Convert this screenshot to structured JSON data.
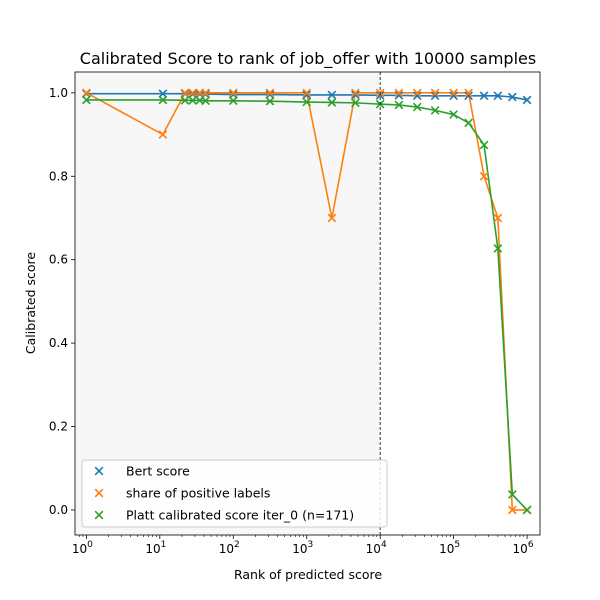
{
  "chart_data": {
    "type": "line",
    "title": "Calibrated Score to rank of job_offer with 10000 samples",
    "xlabel": "Rank of predicted score",
    "ylabel": "Calibrated score",
    "xscale": "log",
    "xlim": [
      0.7,
      1500000
    ],
    "ylim": [
      -0.06,
      1.05
    ],
    "xticks": [
      {
        "value": 1,
        "base": "10",
        "exp": "0"
      },
      {
        "value": 10,
        "base": "10",
        "exp": "1"
      },
      {
        "value": 100,
        "base": "10",
        "exp": "2"
      },
      {
        "value": 1000,
        "base": "10",
        "exp": "3"
      },
      {
        "value": 10000,
        "base": "10",
        "exp": "4"
      },
      {
        "value": 100000,
        "base": "10",
        "exp": "5"
      },
      {
        "value": 1000000,
        "base": "10",
        "exp": "6"
      }
    ],
    "yticks": [
      {
        "value": 0.0,
        "label": "0.0"
      },
      {
        "value": 0.2,
        "label": "0.2"
      },
      {
        "value": 0.4,
        "label": "0.4"
      },
      {
        "value": 0.6,
        "label": "0.6"
      },
      {
        "value": 0.8,
        "label": "0.8"
      },
      {
        "value": 1.0,
        "label": "1.0"
      }
    ],
    "shaded_region": {
      "x_from": 0.7,
      "x_to": 10000,
      "color": "#f7f7f7"
    },
    "vline": {
      "x": 10000,
      "style": "dashed"
    },
    "grid": false,
    "legend_position": "lower-left",
    "series": [
      {
        "name": "Bert score",
        "color": "#1f77b4",
        "x": [
          1,
          11,
          22,
          28,
          35,
          42,
          100,
          316,
          1000,
          2200,
          4600,
          10000,
          18000,
          32000,
          56000,
          100000,
          160000,
          260000,
          400000,
          630000,
          1000000
        ],
        "y": [
          0.998,
          0.998,
          0.998,
          0.997,
          0.997,
          0.997,
          0.996,
          0.996,
          0.995,
          0.995,
          0.995,
          0.994,
          0.994,
          0.993,
          0.993,
          0.993,
          0.993,
          0.993,
          0.993,
          0.99,
          0.983
        ]
      },
      {
        "name": "share of positive labels",
        "color": "#ff7f0e",
        "x": [
          1,
          11,
          22,
          28,
          35,
          42,
          100,
          316,
          1000,
          2200,
          4600,
          10000,
          18000,
          32000,
          56000,
          100000,
          160000,
          260000,
          400000,
          630000,
          1000000
        ],
        "y": [
          1.0,
          0.9,
          1.0,
          1.0,
          1.0,
          1.0,
          1.0,
          1.0,
          1.0,
          0.7,
          1.0,
          1.0,
          1.0,
          1.0,
          1.0,
          1.0,
          1.0,
          0.8,
          0.7,
          0.0,
          0.0
        ]
      },
      {
        "name": "Platt calibrated score iter_0 (n=171)",
        "color": "#2ca02c",
        "x": [
          1,
          11,
          22,
          28,
          35,
          42,
          100,
          316,
          1000,
          2200,
          4600,
          10000,
          18000,
          32000,
          56000,
          100000,
          160000,
          260000,
          400000,
          630000,
          1000000
        ],
        "y": [
          0.983,
          0.983,
          0.982,
          0.982,
          0.982,
          0.981,
          0.981,
          0.98,
          0.978,
          0.977,
          0.976,
          0.973,
          0.971,
          0.966,
          0.958,
          0.948,
          0.928,
          0.875,
          0.627,
          0.037,
          0.0
        ]
      }
    ]
  }
}
